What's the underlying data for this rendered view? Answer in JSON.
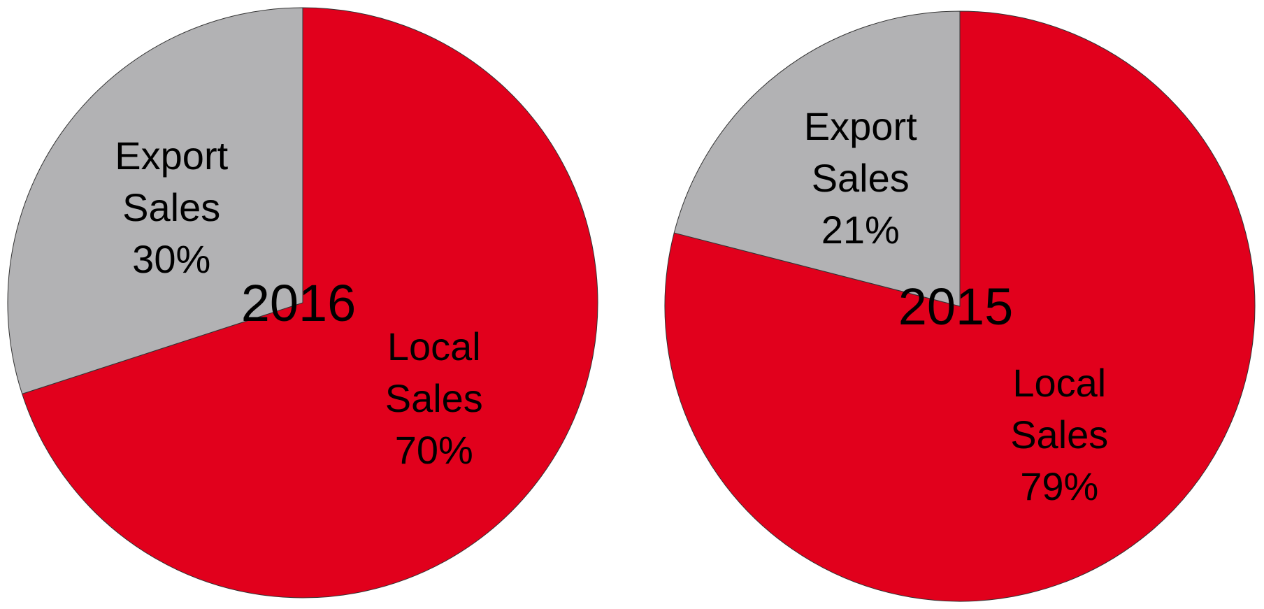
{
  "chart_data": [
    {
      "type": "pie",
      "title": "2016",
      "categories": [
        "Local Sales",
        "Export Sales"
      ],
      "values": [
        70,
        30
      ],
      "value_labels": [
        "70%",
        "30%"
      ],
      "colors": [
        "#e1001c",
        "#b2b2b4"
      ]
    },
    {
      "type": "pie",
      "title": "2015",
      "categories": [
        "Local Sales",
        "Export Sales"
      ],
      "values": [
        79,
        21
      ],
      "value_labels": [
        "79%",
        "21%"
      ],
      "colors": [
        "#e1001c",
        "#b2b2b4"
      ]
    }
  ]
}
